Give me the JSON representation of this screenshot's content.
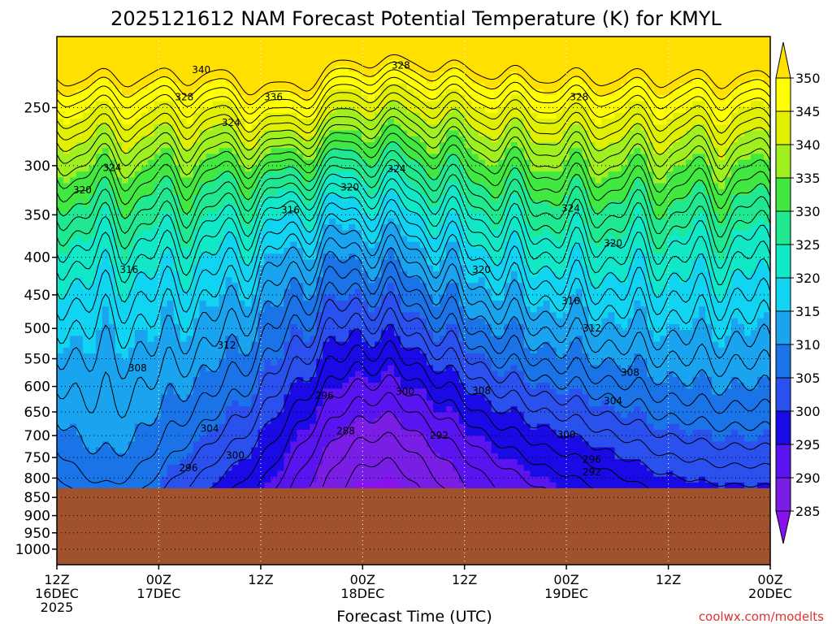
{
  "chart_data": {
    "type": "heatmap",
    "title": "2025121612 NAM Forecast Potential Temperature (K) for KMYL",
    "xlabel": "Forecast Time (UTC)",
    "ylabel": "",
    "watermark": "coolwx.com/modelts",
    "x_ticks": [
      {
        "hour": 0,
        "label": "12Z",
        "sub": "16DEC",
        "sub2": "2025"
      },
      {
        "hour": 12,
        "label": "00Z",
        "sub": "17DEC",
        "sub2": ""
      },
      {
        "hour": 24,
        "label": "12Z",
        "sub": "",
        "sub2": ""
      },
      {
        "hour": 36,
        "label": "00Z",
        "sub": "18DEC",
        "sub2": ""
      },
      {
        "hour": 48,
        "label": "12Z",
        "sub": "",
        "sub2": ""
      },
      {
        "hour": 60,
        "label": "00Z",
        "sub": "19DEC",
        "sub2": ""
      },
      {
        "hour": 72,
        "label": "12Z",
        "sub": "",
        "sub2": ""
      },
      {
        "hour": 84,
        "label": "00Z",
        "sub": "20DEC",
        "sub2": ""
      }
    ],
    "xlim": [
      0,
      84
    ],
    "y_ticks": [
      250,
      300,
      350,
      400,
      450,
      500,
      550,
      600,
      650,
      700,
      750,
      800,
      850,
      900,
      950,
      1000
    ],
    "ylim": [
      1050,
      200
    ],
    "y_scale": "log-pressure",
    "ground_pressure": 826,
    "colorbar": {
      "levels": [
        285,
        290,
        295,
        300,
        305,
        310,
        315,
        320,
        325,
        330,
        335,
        340,
        345,
        350
      ],
      "colors": [
        "#7a1ee6",
        "#5a14f0",
        "#1a0ae6",
        "#2a50ee",
        "#1a74e8",
        "#1aa4f0",
        "#10d4f2",
        "#10e8c8",
        "#20e890",
        "#40e840",
        "#a0f020",
        "#e0f000",
        "#ffff00"
      ],
      "min_arrow_color": "#8b10f0",
      "max_arrow_color": "#ffe000"
    },
    "ground_color": "#a0522d",
    "contour_interval": 2,
    "contour_labels": [
      {
        "v": "340",
        "h": 17,
        "p": 222
      },
      {
        "v": "328",
        "h": 15,
        "p": 242
      },
      {
        "v": "336",
        "h": 25.5,
        "p": 242
      },
      {
        "v": "324",
        "h": 20.5,
        "p": 262
      },
      {
        "v": "328",
        "h": 40.5,
        "p": 219
      },
      {
        "v": "328",
        "h": 61.5,
        "p": 242
      },
      {
        "v": "324",
        "h": 6.5,
        "p": 302
      },
      {
        "v": "320",
        "h": 3,
        "p": 324
      },
      {
        "v": "324",
        "h": 40,
        "p": 303
      },
      {
        "v": "320",
        "h": 34.5,
        "p": 321
      },
      {
        "v": "316",
        "h": 27.5,
        "p": 345
      },
      {
        "v": "324",
        "h": 60.5,
        "p": 343
      },
      {
        "v": "320",
        "h": 65.5,
        "p": 383
      },
      {
        "v": "316",
        "h": 8.5,
        "p": 416
      },
      {
        "v": "320",
        "h": 50,
        "p": 416
      },
      {
        "v": "316",
        "h": 60.5,
        "p": 459
      },
      {
        "v": "312",
        "h": 63,
        "p": 500
      },
      {
        "v": "312",
        "h": 20,
        "p": 527
      },
      {
        "v": "308",
        "h": 9.5,
        "p": 566
      },
      {
        "v": "308",
        "h": 67.5,
        "p": 574
      },
      {
        "v": "308",
        "h": 50,
        "p": 608
      },
      {
        "v": "300",
        "h": 41,
        "p": 610
      },
      {
        "v": "296",
        "h": 31.5,
        "p": 618
      },
      {
        "v": "304",
        "h": 65.5,
        "p": 628
      },
      {
        "v": "304",
        "h": 18,
        "p": 685
      },
      {
        "v": "288",
        "h": 34,
        "p": 690
      },
      {
        "v": "292",
        "h": 45,
        "p": 700
      },
      {
        "v": "300",
        "h": 60,
        "p": 698
      },
      {
        "v": "300",
        "h": 21,
        "p": 745
      },
      {
        "v": "296",
        "h": 63,
        "p": 755
      },
      {
        "v": "296",
        "h": 15.5,
        "p": 775
      },
      {
        "v": "292",
        "h": 63,
        "p": 785
      }
    ]
  }
}
